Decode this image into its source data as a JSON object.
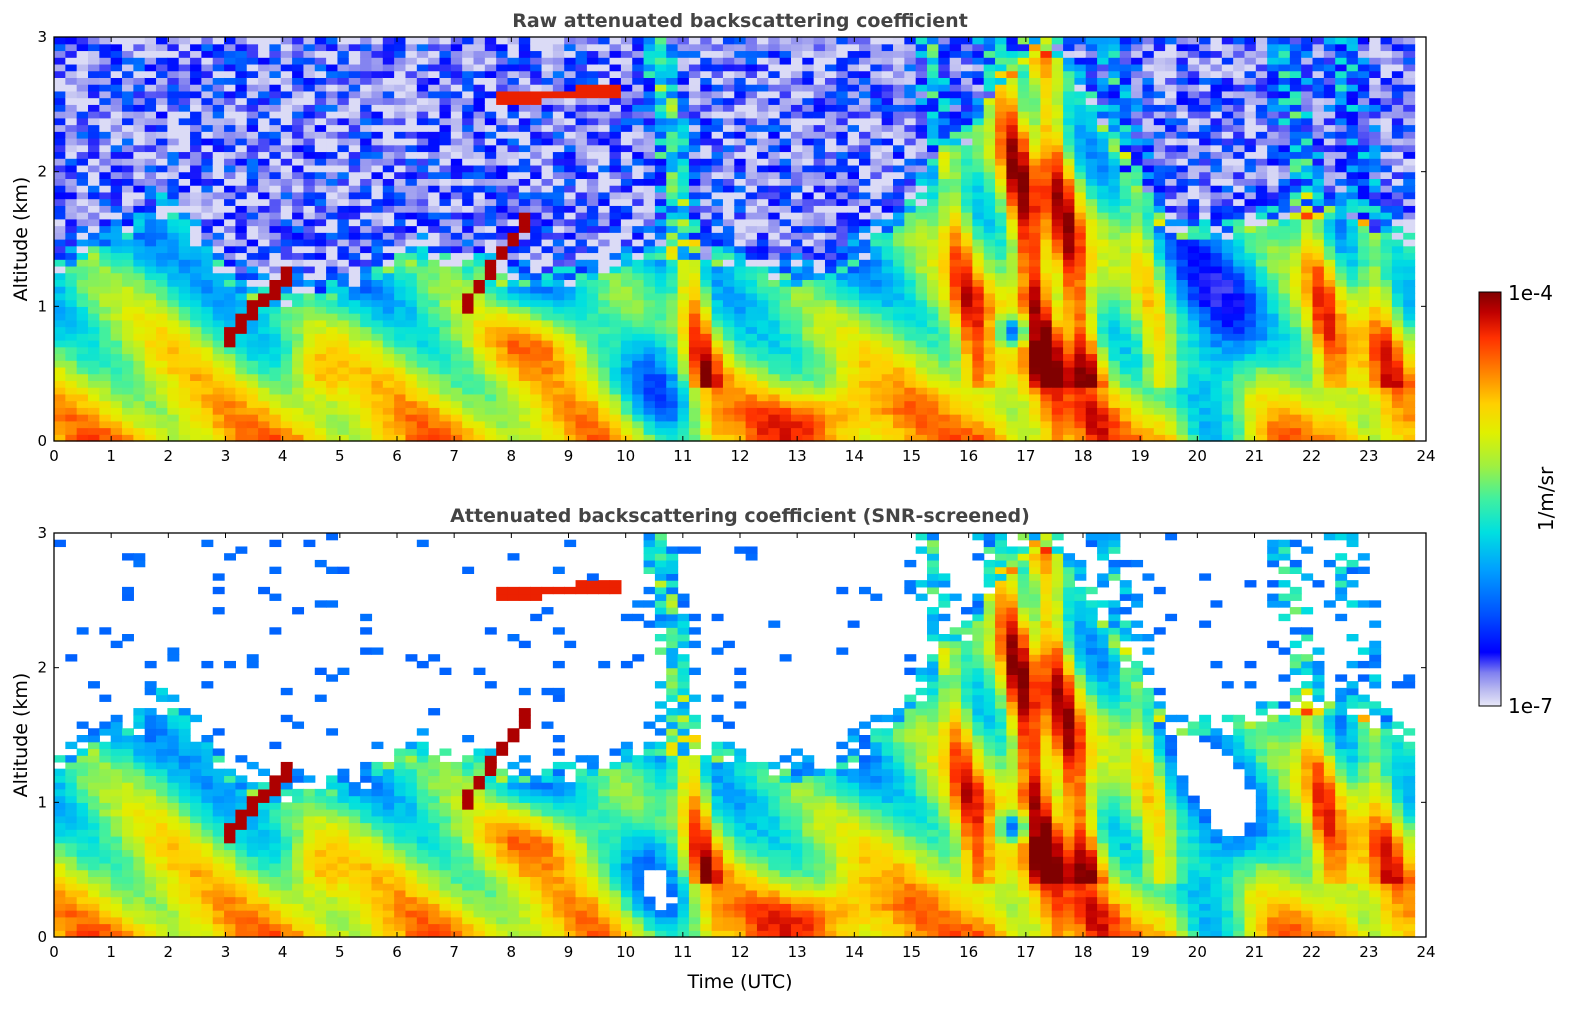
{
  "chart_data": [
    {
      "type": "heatmap",
      "title": "Raw attenuated backscattering coefficient",
      "xlabel": "",
      "ylabel": "Altitude (km)",
      "xlim": [
        0,
        24
      ],
      "ylim": [
        0,
        3
      ],
      "x_ticks": [
        "0",
        "1",
        "2",
        "3",
        "4",
        "5",
        "6",
        "7",
        "8",
        "9",
        "10",
        "11",
        "12",
        "13",
        "14",
        "15",
        "16",
        "17",
        "18",
        "19",
        "20",
        "21",
        "22",
        "23",
        "24"
      ],
      "y_ticks": [
        "0",
        "1",
        "2",
        "3"
      ],
      "data_extent_hours": [
        0,
        23.8
      ],
      "features": [
        {
          "name": "boundary-layer aerosol",
          "time": [
            0,
            6
          ],
          "altitude": [
            0,
            1.0
          ],
          "value_level": "high"
        },
        {
          "name": "rising aerosol layer",
          "time": [
            3,
            4.2
          ],
          "altitude": [
            0.7,
            1.4
          ],
          "value_level": "very high"
        },
        {
          "name": "elevated layer",
          "time": [
            7.7,
            10
          ],
          "altitude": [
            2.5,
            2.65
          ],
          "value_level": "very high"
        },
        {
          "name": "rising layer",
          "time": [
            7.1,
            8.3
          ],
          "altitude": [
            0.9,
            1.7
          ],
          "value_level": "very high"
        },
        {
          "name": "precipitation streak",
          "time": [
            11,
            12
          ],
          "altitude": [
            0.6,
            3.0
          ],
          "value_level": "high"
        },
        {
          "name": "nocturnal layer",
          "time": [
            12,
            14.6
          ],
          "altitude": [
            0,
            0.5
          ],
          "value_level": "high"
        },
        {
          "name": "fall streaks",
          "time": [
            16.5,
            19
          ],
          "altitude": [
            0,
            3.0
          ],
          "value_level": "high"
        },
        {
          "name": "low-value pocket",
          "time": [
            16.5,
            17.2
          ],
          "altitude": [
            0.6,
            1.0
          ],
          "value_level": "low"
        },
        {
          "name": "sky noise",
          "time": [
            0,
            23.8
          ],
          "altitude": [
            1.2,
            3.0
          ],
          "value_level": "noise"
        }
      ]
    },
    {
      "type": "heatmap",
      "title": "Attenuated backscattering coefficient (SNR-screened)",
      "xlabel": "Time (UTC)",
      "ylabel": "Altitude (km)",
      "xlim": [
        0,
        24
      ],
      "ylim": [
        0,
        3
      ],
      "x_ticks": [
        "0",
        "1",
        "2",
        "3",
        "4",
        "5",
        "6",
        "7",
        "8",
        "9",
        "10",
        "11",
        "12",
        "13",
        "14",
        "15",
        "16",
        "17",
        "18",
        "19",
        "20",
        "21",
        "22",
        "23",
        "24"
      ],
      "y_ticks": [
        "0",
        "1",
        "2",
        "3"
      ],
      "data_extent_hours": [
        0,
        23.8
      ],
      "screened": true
    }
  ],
  "colorbar": {
    "label": "1/m/sr",
    "max_label": "1e-4",
    "min_label": "1e-7",
    "scale": "log",
    "range": [
      1e-07,
      0.0001
    ],
    "colormap": "jet",
    "colors": [
      "#e8e8f8",
      "#b8b8f0",
      "#8080f0",
      "#0000ff",
      "#0050ff",
      "#00a0ff",
      "#00e0e0",
      "#40f0a0",
      "#a0f040",
      "#e0f000",
      "#ffd000",
      "#ff8000",
      "#ff3000",
      "#c00000",
      "#800000"
    ]
  }
}
